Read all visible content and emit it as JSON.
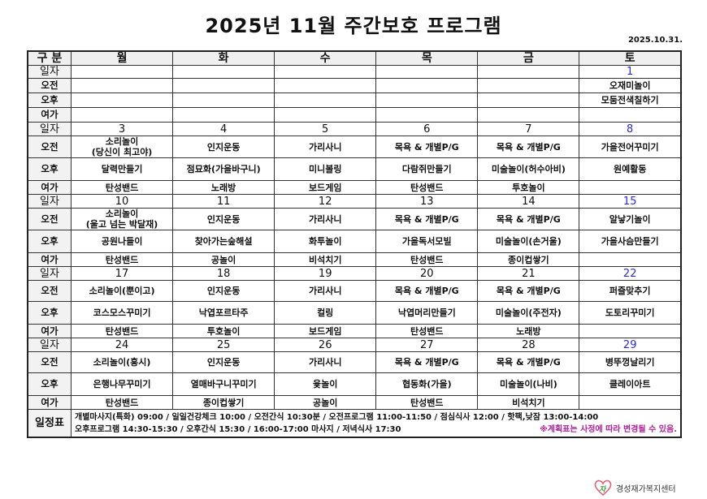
{
  "title": "2025년 11월 주간보호 프로그램",
  "date": "2025.10.31.",
  "header": {
    "label": "구 분",
    "days": [
      "월",
      "화",
      "수",
      "목",
      "금",
      "토"
    ]
  },
  "row_labels": {
    "date": "일자",
    "am": "오전",
    "pm": "오후",
    "leisure": "여가"
  },
  "weeks": [
    {
      "dates": [
        "",
        "",
        "",
        "",
        "",
        "1"
      ],
      "am": [
        "",
        "",
        "",
        "",
        "",
        "오재미놀이"
      ],
      "pm": [
        "",
        "",
        "",
        "",
        "",
        "모둠전색칠하기"
      ],
      "leisure": [
        "",
        "",
        "",
        "",
        "",
        ""
      ]
    },
    {
      "dates": [
        "3",
        "4",
        "5",
        "6",
        "7",
        "8"
      ],
      "am": [
        "소리놀이\n(당신이 최고야)",
        "인지운동",
        "가리사니",
        "목욕 & 개별P/G",
        "목욕 & 개별P/G",
        "가을전어꾸미기"
      ],
      "pm": [
        "달력만들기",
        "점묘화(가을바구니)",
        "미니볼링",
        "다람쥐만들기",
        "미술놀이(허수아비)",
        "원예활동"
      ],
      "leisure": [
        "탄성밴드",
        "노래방",
        "보드게임",
        "탄성밴드",
        "투호놀이",
        ""
      ]
    },
    {
      "dates": [
        "10",
        "11",
        "12",
        "13",
        "14",
        "15"
      ],
      "am": [
        "소리놀이\n(울고 넘는 박달재)",
        "인지운동",
        "가리사니",
        "목욕 & 개별P/G",
        "목욕 & 개별P/G",
        "알낳기놀이"
      ],
      "pm": [
        "공원나들이",
        "찾아가는숲해설",
        "화투놀이",
        "가을독서모빌",
        "미술놀이(손거울)",
        "가을사슴만들기"
      ],
      "leisure": [
        "탄성밴드",
        "공놀이",
        "비석치기",
        "탄성밴드",
        "종이컵쌓기",
        ""
      ]
    },
    {
      "dates": [
        "17",
        "18",
        "19",
        "20",
        "21",
        "22"
      ],
      "am": [
        "소리놀이(뿐이고)",
        "인지운동",
        "가리사니",
        "목욕 & 개별P/G",
        "목욕 & 개별P/G",
        "퍼즐맞추기"
      ],
      "pm": [
        "코스모스꾸미기",
        "낙엽포르타주",
        "컬링",
        "낙엽머리만들기",
        "미술놀이(주전자)",
        "도토리꾸미기"
      ],
      "leisure": [
        "탄성밴드",
        "투호놀이",
        "보드게임",
        "탄성밴드",
        "노래방",
        ""
      ]
    },
    {
      "dates": [
        "24",
        "25",
        "26",
        "27",
        "28",
        "29"
      ],
      "am": [
        "소리놀이(홍시)",
        "인지운동",
        "가리사니",
        "목욕 & 개별P/G",
        "목욕 & 개별P/G",
        "병뚜껑날리기"
      ],
      "pm": [
        "은행나무꾸미기",
        "열매바구니꾸미기",
        "윷놀이",
        "협동화(가을)",
        "미술놀이(나비)",
        "클레이아트"
      ],
      "leisure": [
        "탄성밴드",
        "종이컵쌓기",
        "공놀이",
        "탄성밴드",
        "비석치기",
        ""
      ]
    }
  ],
  "schedule": {
    "label": "일정표",
    "line1": "개별마사지(특화) 09:00 / 일일건강체크 10:00 / 오전간식 10:30분 / 오전프로그램 11:00-11:50 / 점심식사 12:00 / 핫팩,낮잠 13:00-14:00",
    "line2": "오후프로그램 14:30-15:30 / 오후간식 15:30 / 16:00-17:00 마사지 / 저녁식사 17:30",
    "note": "※계획표는 사정에 따라 변경될 수 있음."
  },
  "logo": {
    "text": "경성재가복지센터"
  },
  "colors": {
    "saturday": "#2b2bcf",
    "note": "#b0209b"
  }
}
